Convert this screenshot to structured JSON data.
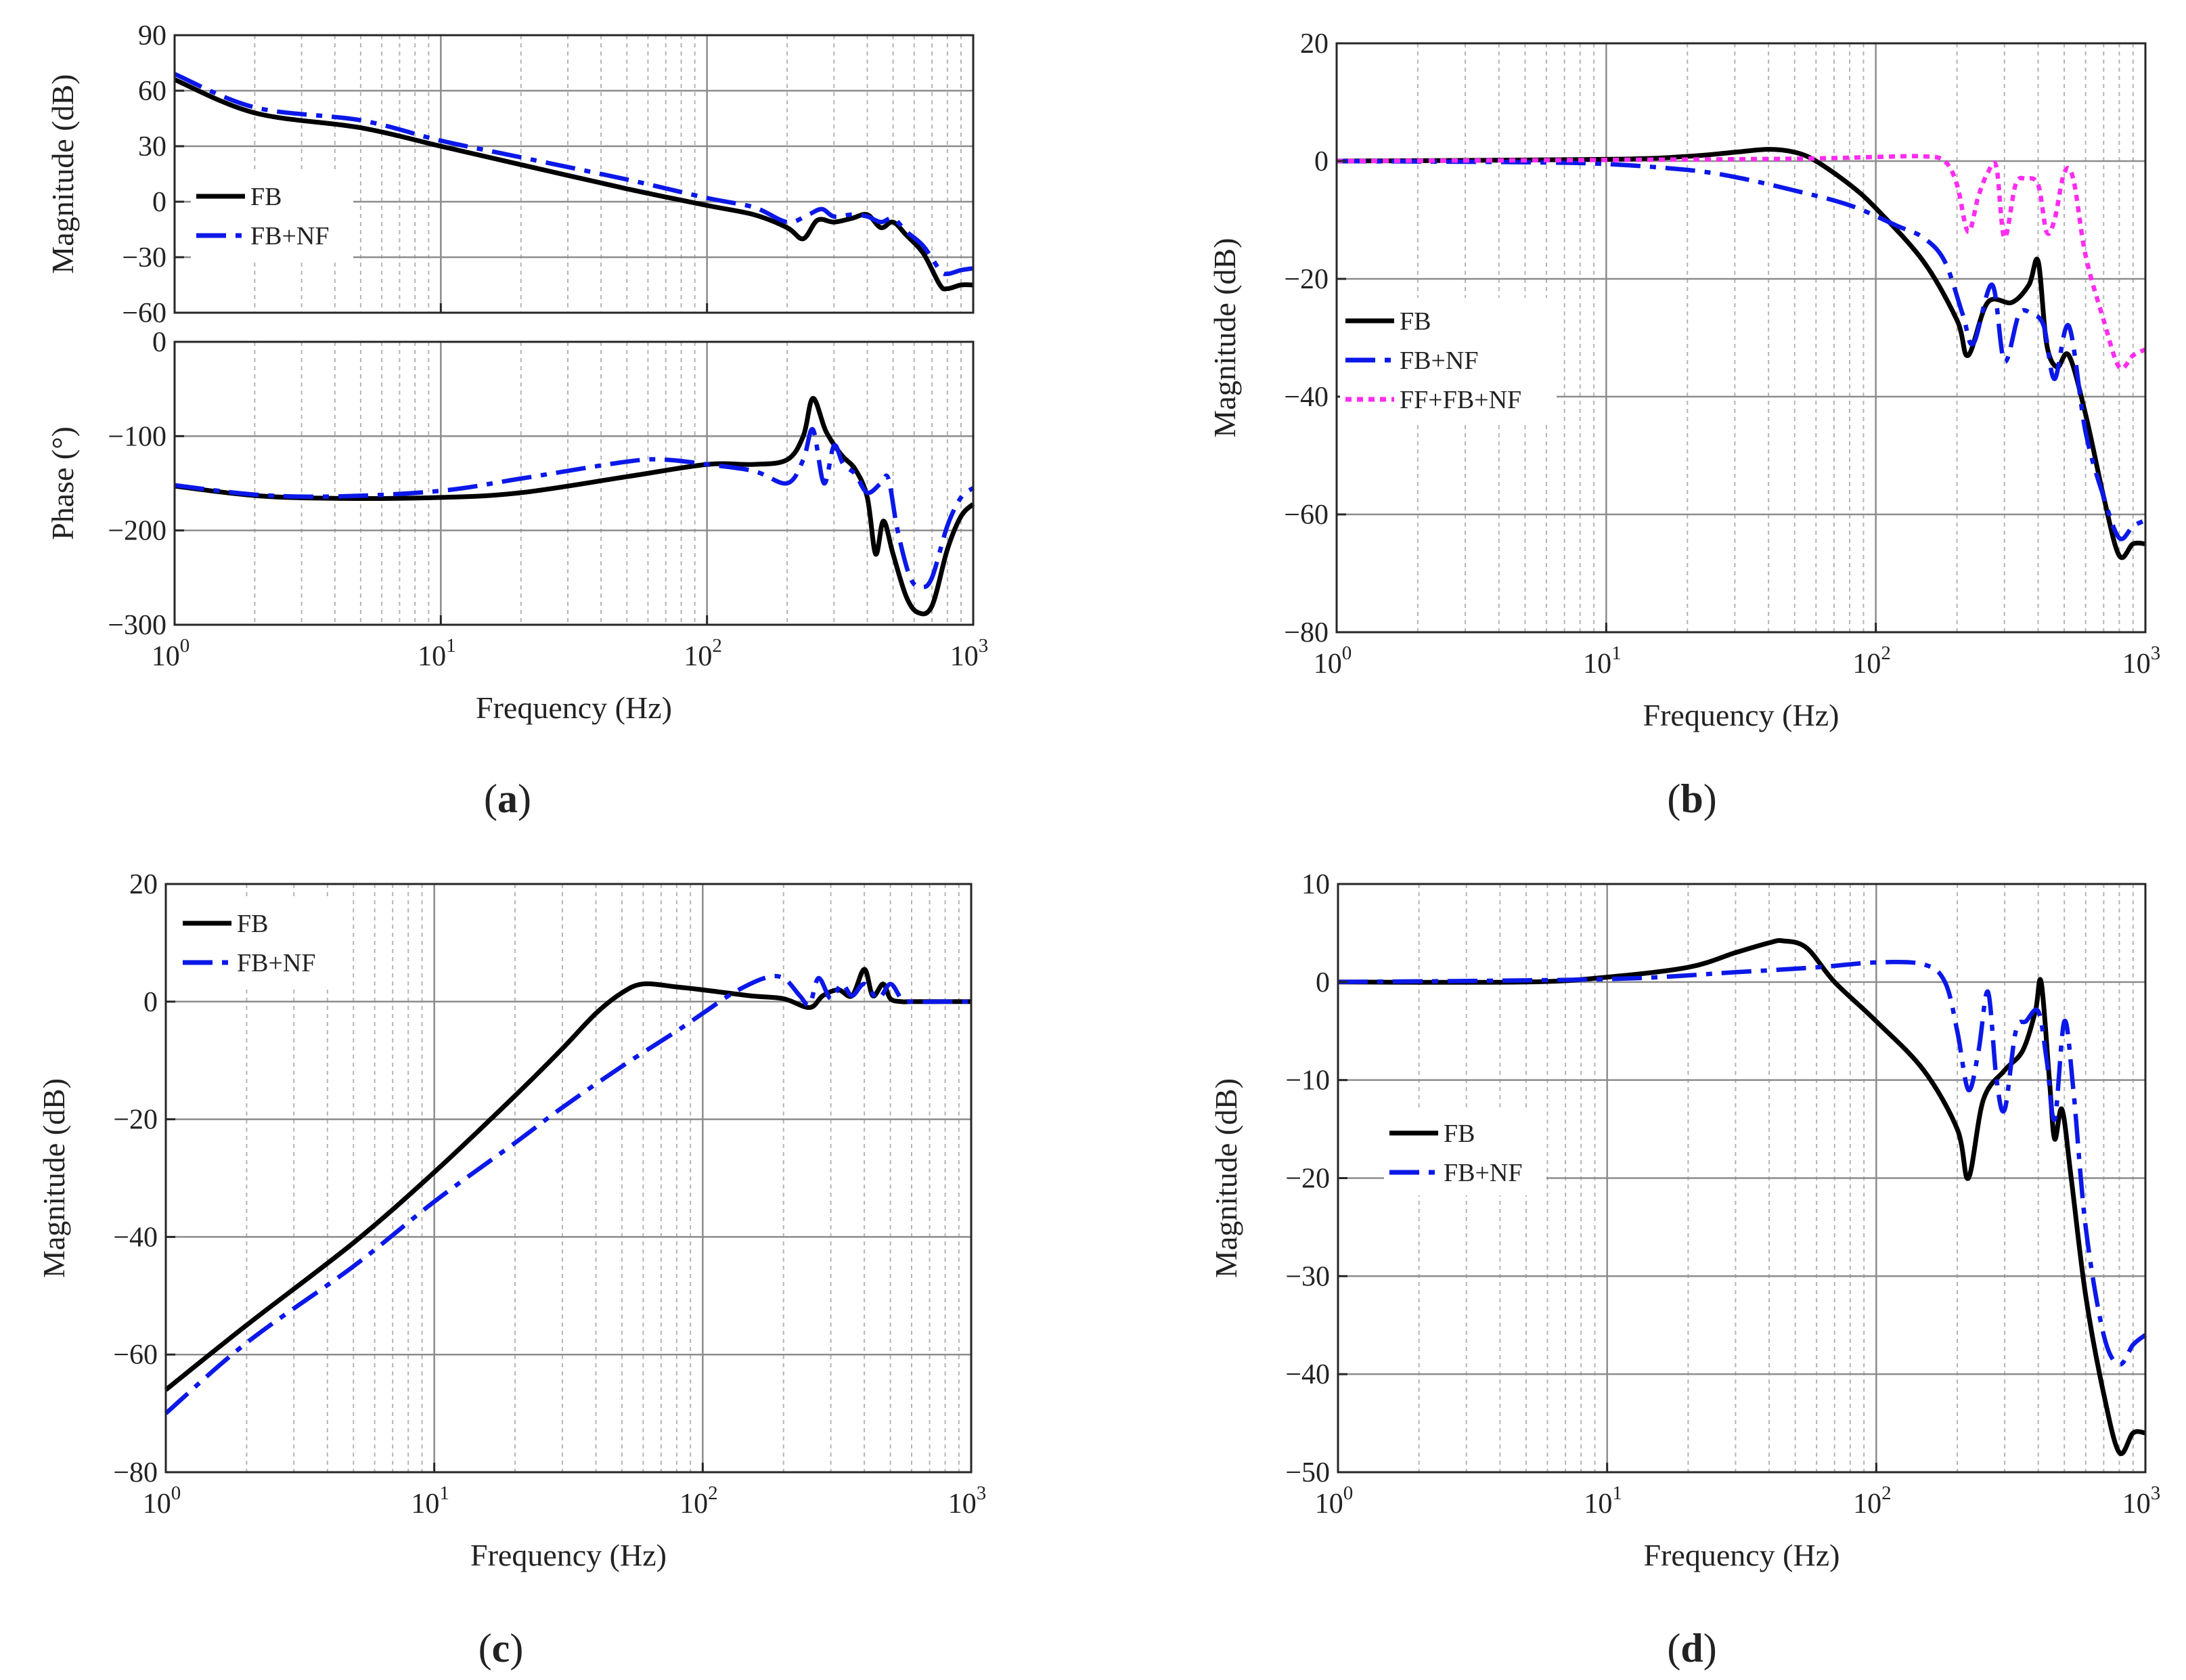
{
  "colors": {
    "FB": "#000000",
    "FB+NF": "#0b18e8",
    "FF+FB+NF": "#ff2cf1",
    "grid_major": "#8c8c8c",
    "grid_minor": "#b4b4b4"
  },
  "chart_data": [
    {
      "id": "a_mag",
      "panel": "a",
      "type": "line",
      "xscale": "log",
      "xlim": [
        1,
        1000
      ],
      "ylim": [
        -60,
        90
      ],
      "yticks": [
        -60,
        -30,
        0,
        30,
        60,
        90
      ],
      "xlabel": "",
      "ylabel": "Magnitude (dB)",
      "show_xticklabels": false,
      "legend": {
        "position": "left-middle",
        "entries": [
          "FB",
          "FB+NF"
        ]
      },
      "series": [
        {
          "name": "FB",
          "style": "solid",
          "x": [
            1,
            2,
            5,
            10,
            20,
            50,
            100,
            150,
            200,
            230,
            260,
            300,
            350,
            400,
            450,
            500,
            560,
            650,
            750,
            800,
            900,
            1000
          ],
          "y": [
            66,
            48,
            40,
            30,
            20,
            7,
            -2,
            -7,
            -14,
            -20,
            -10,
            -11,
            -9,
            -7,
            -14,
            -11,
            -18,
            -28,
            -45,
            -47,
            -45,
            -45
          ]
        },
        {
          "name": "FB+NF",
          "style": "dashdot",
          "x": [
            1,
            2,
            5,
            10,
            20,
            50,
            100,
            150,
            200,
            240,
            270,
            300,
            350,
            400,
            450,
            500,
            560,
            650,
            750,
            800,
            900,
            1000
          ],
          "y": [
            69,
            51,
            44,
            33,
            24,
            12,
            2,
            -3,
            -11,
            -7,
            -4,
            -8,
            -7,
            -8,
            -11,
            -9,
            -16,
            -24,
            -37,
            -39,
            -37,
            -36
          ]
        }
      ]
    },
    {
      "id": "a_phase",
      "panel": "a",
      "type": "line",
      "xscale": "log",
      "xlim": [
        1,
        1000
      ],
      "ylim": [
        -300,
        0
      ],
      "yticks": [
        -300,
        -200,
        -100,
        0
      ],
      "xlabel": "Frequency (Hz)",
      "ylabel": "Phase (°)",
      "show_xticklabels": true,
      "series": [
        {
          "name": "FB",
          "style": "solid",
          "x": [
            1,
            2,
            4,
            10,
            20,
            50,
            100,
            150,
            200,
            230,
            250,
            280,
            320,
            360,
            400,
            430,
            460,
            500,
            560,
            620,
            700,
            800,
            900,
            1000
          ],
          "y": [
            -153,
            -163,
            -166,
            -165,
            -160,
            -143,
            -130,
            -130,
            -125,
            -100,
            -60,
            -95,
            -120,
            -135,
            -165,
            -225,
            -190,
            -225,
            -270,
            -287,
            -280,
            -220,
            -185,
            -172
          ]
        },
        {
          "name": "FB+NF",
          "style": "dashdot",
          "x": [
            1,
            2,
            4,
            10,
            20,
            50,
            70,
            100,
            150,
            200,
            230,
            250,
            275,
            300,
            325,
            360,
            400,
            450,
            480,
            520,
            580,
            640,
            700,
            800,
            900,
            1000
          ],
          "y": [
            -152,
            -162,
            -164,
            -158,
            -145,
            -127,
            -125,
            -130,
            -137,
            -150,
            -125,
            -93,
            -150,
            -110,
            -130,
            -140,
            -160,
            -150,
            -145,
            -200,
            -250,
            -260,
            -250,
            -195,
            -165,
            -155
          ]
        }
      ]
    },
    {
      "id": "b",
      "panel": "b",
      "type": "line",
      "xscale": "log",
      "xlim": [
        1,
        1000
      ],
      "ylim": [
        -80,
        20
      ],
      "yticks": [
        -80,
        -60,
        -40,
        -20,
        0,
        20
      ],
      "xlabel": "Frequency (Hz)",
      "ylabel": "Magnitude (dB)",
      "show_xticklabels": true,
      "legend": {
        "position": "left-middle",
        "entries": [
          "FB",
          "FB+NF",
          "FF+FB+NF"
        ]
      },
      "series": [
        {
          "name": "FB",
          "style": "solid",
          "x": [
            1,
            10,
            20,
            30,
            40,
            50,
            60,
            80,
            100,
            150,
            200,
            220,
            260,
            320,
            370,
            400,
            430,
            470,
            520,
            600,
            700,
            800,
            900,
            1000
          ],
          "y": [
            0,
            0.3,
            0.8,
            1.5,
            2,
            1.5,
            0,
            -4,
            -8,
            -17,
            -27,
            -33,
            -24,
            -24,
            -21,
            -17,
            -31,
            -35,
            -33,
            -43,
            -57,
            -67,
            -65,
            -65
          ]
        },
        {
          "name": "FB+NF",
          "style": "dashdot",
          "x": [
            1,
            5,
            10,
            20,
            30,
            50,
            80,
            120,
            150,
            180,
            210,
            230,
            270,
            300,
            340,
            380,
            420,
            460,
            520,
            600,
            700,
            800,
            900,
            1000
          ],
          "y": [
            0,
            -0.2,
            -0.5,
            -1.5,
            -2.7,
            -5,
            -7.5,
            -11,
            -13,
            -17,
            -26,
            -31,
            -21,
            -34,
            -26,
            -26,
            -28,
            -37,
            -28,
            -46,
            -57,
            -64,
            -62,
            -61
          ]
        },
        {
          "name": "FF+FB+NF",
          "style": "dotted",
          "x": [
            1,
            10,
            50,
            100,
            150,
            180,
            200,
            220,
            240,
            260,
            280,
            300,
            330,
            360,
            400,
            430,
            460,
            500,
            540,
            600,
            700,
            800,
            900,
            1000
          ],
          "y": [
            0,
            0.2,
            0.4,
            0.7,
            0.8,
            0,
            -4,
            -12,
            -6,
            -2,
            -1,
            -13,
            -4,
            -3,
            -4,
            -12,
            -10,
            -2,
            -3,
            -16,
            -27,
            -35,
            -33,
            -32
          ]
        }
      ]
    },
    {
      "id": "c",
      "panel": "c",
      "type": "line",
      "xscale": "log",
      "xlim": [
        1,
        1000
      ],
      "ylim": [
        -80,
        20
      ],
      "yticks": [
        -80,
        -60,
        -40,
        -20,
        0,
        20
      ],
      "xlabel": "Frequency (Hz)",
      "ylabel": "Magnitude (dB)",
      "show_xticklabels": true,
      "legend": {
        "position": "top-left",
        "entries": [
          "FB",
          "FB+NF"
        ]
      },
      "series": [
        {
          "name": "FB",
          "style": "solid",
          "x": [
            1,
            2,
            5,
            10,
            20,
            30,
            40,
            50,
            60,
            80,
            100,
            150,
            200,
            250,
            280,
            320,
            360,
            400,
            430,
            470,
            500,
            550,
            600,
            800,
            1000
          ],
          "y": [
            -66,
            -55,
            -41,
            -29,
            -16,
            -8,
            -2,
            1.5,
            3,
            2.5,
            2,
            1,
            0.5,
            -1,
            1,
            2,
            1,
            5.5,
            1,
            3,
            0.5,
            0,
            0,
            0,
            0
          ]
        },
        {
          "name": "FB+NF",
          "style": "dashdot",
          "x": [
            1,
            2,
            5,
            10,
            20,
            30,
            50,
            80,
            100,
            130,
            170,
            200,
            230,
            250,
            270,
            300,
            330,
            360,
            400,
            450,
            500,
            550,
            600,
            800,
            1000
          ],
          "y": [
            -70,
            -58,
            -45,
            -34,
            -24,
            -18,
            -11,
            -5,
            -2,
            1.5,
            4,
            4,
            1,
            -0.5,
            4,
            0.5,
            3,
            1,
            3,
            0.5,
            3,
            0.5,
            0,
            0,
            0
          ]
        }
      ]
    },
    {
      "id": "d",
      "panel": "d",
      "type": "line",
      "xscale": "log",
      "xlim": [
        1,
        1000
      ],
      "ylim": [
        -50,
        10
      ],
      "yticks": [
        -50,
        -40,
        -30,
        -20,
        -10,
        0,
        10
      ],
      "xlabel": "Frequency (Hz)",
      "ylabel": "Magnitude (dB)",
      "show_xticklabels": true,
      "legend": {
        "position": "left-middle",
        "entries": [
          "FB",
          "FB+NF"
        ]
      },
      "series": [
        {
          "name": "FB",
          "style": "solid",
          "x": [
            1,
            5,
            10,
            20,
            30,
            40,
            45,
            55,
            70,
            100,
            150,
            200,
            220,
            250,
            300,
            350,
            390,
            410,
            440,
            460,
            490,
            530,
            600,
            700,
            800,
            900,
            1000
          ],
          "y": [
            0,
            0,
            0.5,
            1.5,
            3,
            4,
            4.2,
            3.5,
            0,
            -4,
            -9,
            -15,
            -20,
            -12,
            -9,
            -7,
            -3,
            0,
            -10,
            -16,
            -13,
            -20,
            -32,
            -42,
            -48,
            -46,
            -46
          ]
        },
        {
          "name": "FB+NF",
          "style": "dashdot",
          "x": [
            1,
            10,
            30,
            60,
            100,
            150,
            180,
            200,
            220,
            240,
            260,
            280,
            300,
            330,
            360,
            400,
            430,
            460,
            500,
            540,
            600,
            700,
            800,
            900,
            1000
          ],
          "y": [
            0,
            0.3,
            1,
            1.5,
            2,
            1.8,
            0,
            -5,
            -11,
            -7,
            -1,
            -10,
            -13,
            -5,
            -4,
            -3,
            -8,
            -14,
            -4,
            -11,
            -25,
            -36,
            -39,
            -37,
            -36
          ]
        }
      ]
    }
  ],
  "panel_labels": {
    "a": "(a)",
    "b": "(b)",
    "c": "(c)",
    "d": "(d)"
  },
  "xtick_labels": [
    {
      "base": "10",
      "exp": "0"
    },
    {
      "base": "10",
      "exp": "1"
    },
    {
      "base": "10",
      "exp": "2"
    },
    {
      "base": "10",
      "exp": "3"
    }
  ]
}
